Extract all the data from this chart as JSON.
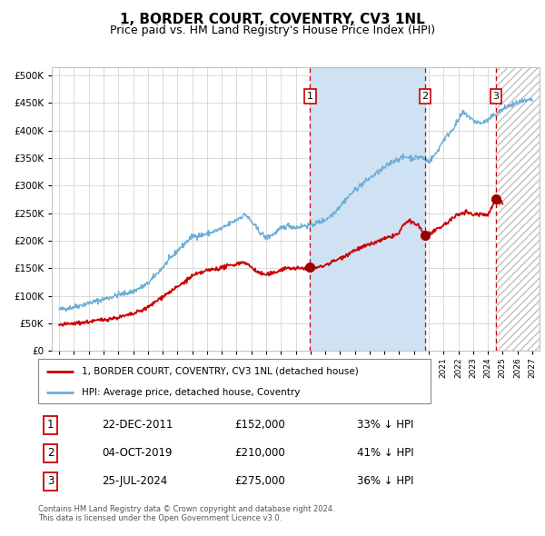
{
  "title": "1, BORDER COURT, COVENTRY, CV3 1NL",
  "subtitle": "Price paid vs. HM Land Registry's House Price Index (HPI)",
  "title_fontsize": 11,
  "subtitle_fontsize": 9,
  "ytick_values": [
    0,
    50000,
    100000,
    150000,
    200000,
    250000,
    300000,
    350000,
    400000,
    450000,
    500000
  ],
  "ylim": [
    0,
    515000
  ],
  "xlim_start": 1994.5,
  "xlim_end": 2027.5,
  "x_ticks": [
    1995,
    1996,
    1997,
    1998,
    1999,
    2000,
    2001,
    2002,
    2003,
    2004,
    2005,
    2006,
    2007,
    2008,
    2009,
    2010,
    2011,
    2012,
    2013,
    2014,
    2015,
    2016,
    2017,
    2018,
    2019,
    2020,
    2021,
    2022,
    2023,
    2024,
    2025,
    2026,
    2027
  ],
  "hpi_color": "#6baed6",
  "hpi_fill_color": "#cfe2f3",
  "price_color": "#cc0000",
  "sale_marker_color": "#990000",
  "dashed_line_color": "#cc0000",
  "background_color": "#ffffff",
  "grid_color": "#cccccc",
  "sale_points": [
    {
      "year": 2011.97,
      "price": 152000,
      "label": "1",
      "date": "22-DEC-2011",
      "hpi_pct": "33%"
    },
    {
      "year": 2019.75,
      "price": 210000,
      "label": "2",
      "date": "04-OCT-2019",
      "hpi_pct": "41%"
    },
    {
      "year": 2024.56,
      "price": 275000,
      "label": "3",
      "date": "25-JUL-2024",
      "hpi_pct": "36%"
    }
  ],
  "legend_label_price": "1, BORDER COURT, COVENTRY, CV3 1NL (detached house)",
  "legend_label_hpi": "HPI: Average price, detached house, Coventry",
  "footer_text": "Contains HM Land Registry data © Crown copyright and database right 2024.\nThis data is licensed under the Open Government Licence v3.0.",
  "shade_start": 2011.97,
  "shade_end": 2019.75,
  "hatched_start": 2024.56,
  "hatched_end": 2027.5,
  "table_rows": [
    [
      "1",
      "22-DEC-2011",
      "£152,000",
      "33% ↓ HPI"
    ],
    [
      "2",
      "04-OCT-2019",
      "£210,000",
      "41% ↓ HPI"
    ],
    [
      "3",
      "25-JUL-2024",
      "£275,000",
      "36% ↓ HPI"
    ]
  ]
}
